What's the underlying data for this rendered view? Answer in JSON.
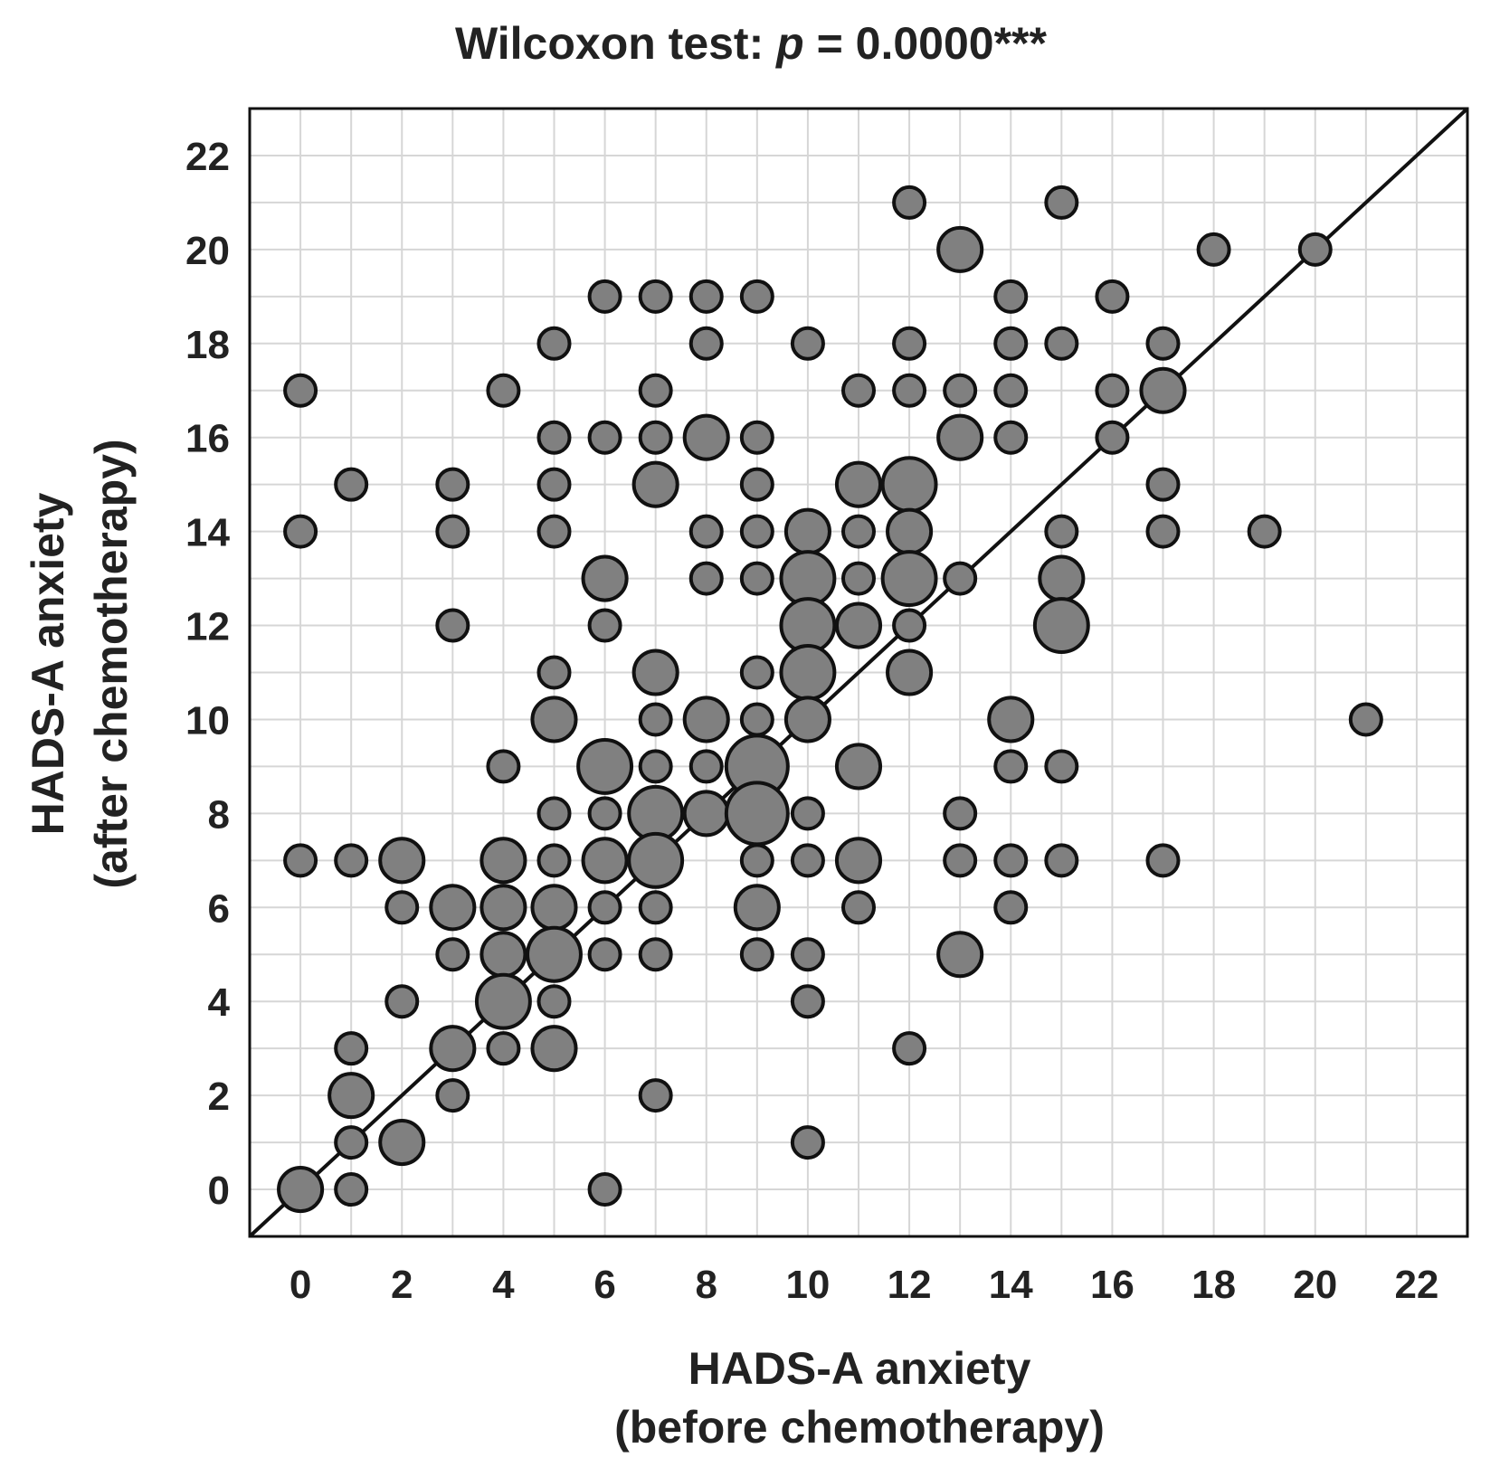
{
  "chart_data": {
    "type": "scatter",
    "title": {
      "prefix": "Wilcoxon test: ",
      "symbol": "p",
      "suffix": " = 0.0000***"
    },
    "xlabel": [
      "HADS-A anxiety",
      "(before chemotherapy)"
    ],
    "ylabel": [
      "HADS-A anxiety",
      "(after chemotherapy)"
    ],
    "xlim": [
      -1,
      23
    ],
    "ylim": [
      -1,
      23
    ],
    "x_ticks": [
      "0",
      "2",
      "4",
      "6",
      "8",
      "10",
      "12",
      "14",
      "16",
      "18",
      "20",
      "22"
    ],
    "y_ticks": [
      "0",
      "2",
      "4",
      "6",
      "8",
      "10",
      "12",
      "14",
      "16",
      "18",
      "20",
      "22"
    ],
    "grid": true,
    "reference_line": "y = x",
    "marker_color": "#808080",
    "marker_edge_color": "#111111",
    "points": [
      {
        "x": 0,
        "y": 17,
        "n": 1
      },
      {
        "x": 0,
        "y": 14,
        "n": 1
      },
      {
        "x": 0,
        "y": 7,
        "n": 1
      },
      {
        "x": 0,
        "y": 0,
        "n": 2
      },
      {
        "x": 1,
        "y": 15,
        "n": 1
      },
      {
        "x": 1,
        "y": 7,
        "n": 1
      },
      {
        "x": 1,
        "y": 3,
        "n": 1
      },
      {
        "x": 1,
        "y": 2,
        "n": 2
      },
      {
        "x": 1,
        "y": 1,
        "n": 1
      },
      {
        "x": 1,
        "y": 0,
        "n": 1
      },
      {
        "x": 2,
        "y": 7,
        "n": 2
      },
      {
        "x": 2,
        "y": 6,
        "n": 1
      },
      {
        "x": 2,
        "y": 4,
        "n": 1
      },
      {
        "x": 2,
        "y": 1,
        "n": 2
      },
      {
        "x": 3,
        "y": 15,
        "n": 1
      },
      {
        "x": 3,
        "y": 14,
        "n": 1
      },
      {
        "x": 3,
        "y": 12,
        "n": 1
      },
      {
        "x": 3,
        "y": 6,
        "n": 2
      },
      {
        "x": 3,
        "y": 5,
        "n": 1
      },
      {
        "x": 3,
        "y": 3,
        "n": 2
      },
      {
        "x": 3,
        "y": 2,
        "n": 1
      },
      {
        "x": 4,
        "y": 17,
        "n": 1
      },
      {
        "x": 4,
        "y": 9,
        "n": 1
      },
      {
        "x": 4,
        "y": 7,
        "n": 2
      },
      {
        "x": 4,
        "y": 6,
        "n": 2
      },
      {
        "x": 4,
        "y": 5,
        "n": 2
      },
      {
        "x": 4,
        "y": 4,
        "n": 3
      },
      {
        "x": 4,
        "y": 3,
        "n": 1
      },
      {
        "x": 5,
        "y": 18,
        "n": 1
      },
      {
        "x": 5,
        "y": 16,
        "n": 1
      },
      {
        "x": 5,
        "y": 15,
        "n": 1
      },
      {
        "x": 5,
        "y": 14,
        "n": 1
      },
      {
        "x": 5,
        "y": 11,
        "n": 1
      },
      {
        "x": 5,
        "y": 10,
        "n": 2
      },
      {
        "x": 5,
        "y": 8,
        "n": 1
      },
      {
        "x": 5,
        "y": 7,
        "n": 1
      },
      {
        "x": 5,
        "y": 6,
        "n": 2
      },
      {
        "x": 5,
        "y": 5,
        "n": 3
      },
      {
        "x": 5,
        "y": 4,
        "n": 1
      },
      {
        "x": 5,
        "y": 3,
        "n": 2
      },
      {
        "x": 6,
        "y": 19,
        "n": 1
      },
      {
        "x": 6,
        "y": 16,
        "n": 1
      },
      {
        "x": 6,
        "y": 13,
        "n": 2
      },
      {
        "x": 6,
        "y": 12,
        "n": 1
      },
      {
        "x": 6,
        "y": 9,
        "n": 3
      },
      {
        "x": 6,
        "y": 8,
        "n": 1
      },
      {
        "x": 6,
        "y": 7,
        "n": 2
      },
      {
        "x": 6,
        "y": 6,
        "n": 1
      },
      {
        "x": 6,
        "y": 5,
        "n": 1
      },
      {
        "x": 6,
        "y": 0,
        "n": 1
      },
      {
        "x": 7,
        "y": 19,
        "n": 1
      },
      {
        "x": 7,
        "y": 17,
        "n": 1
      },
      {
        "x": 7,
        "y": 16,
        "n": 1
      },
      {
        "x": 7,
        "y": 15,
        "n": 2
      },
      {
        "x": 7,
        "y": 11,
        "n": 2
      },
      {
        "x": 7,
        "y": 10,
        "n": 1
      },
      {
        "x": 7,
        "y": 9,
        "n": 1
      },
      {
        "x": 7,
        "y": 8,
        "n": 3
      },
      {
        "x": 7,
        "y": 7,
        "n": 3
      },
      {
        "x": 7,
        "y": 6,
        "n": 1
      },
      {
        "x": 7,
        "y": 5,
        "n": 1
      },
      {
        "x": 7,
        "y": 2,
        "n": 1
      },
      {
        "x": 8,
        "y": 19,
        "n": 1
      },
      {
        "x": 8,
        "y": 18,
        "n": 1
      },
      {
        "x": 8,
        "y": 16,
        "n": 2
      },
      {
        "x": 8,
        "y": 14,
        "n": 1
      },
      {
        "x": 8,
        "y": 13,
        "n": 1
      },
      {
        "x": 8,
        "y": 10,
        "n": 2
      },
      {
        "x": 8,
        "y": 9,
        "n": 1
      },
      {
        "x": 8,
        "y": 8,
        "n": 2
      },
      {
        "x": 9,
        "y": 19,
        "n": 1
      },
      {
        "x": 9,
        "y": 16,
        "n": 1
      },
      {
        "x": 9,
        "y": 15,
        "n": 1
      },
      {
        "x": 9,
        "y": 14,
        "n": 1
      },
      {
        "x": 9,
        "y": 13,
        "n": 1
      },
      {
        "x": 9,
        "y": 11,
        "n": 1
      },
      {
        "x": 9,
        "y": 10,
        "n": 1
      },
      {
        "x": 9,
        "y": 9,
        "n": 4
      },
      {
        "x": 9,
        "y": 8,
        "n": 4
      },
      {
        "x": 9,
        "y": 7,
        "n": 1
      },
      {
        "x": 9,
        "y": 6,
        "n": 2
      },
      {
        "x": 9,
        "y": 5,
        "n": 1
      },
      {
        "x": 10,
        "y": 18,
        "n": 1
      },
      {
        "x": 10,
        "y": 14,
        "n": 2
      },
      {
        "x": 10,
        "y": 13,
        "n": 3
      },
      {
        "x": 10,
        "y": 12,
        "n": 3
      },
      {
        "x": 10,
        "y": 11,
        "n": 3
      },
      {
        "x": 10,
        "y": 10,
        "n": 2
      },
      {
        "x": 10,
        "y": 8,
        "n": 1
      },
      {
        "x": 10,
        "y": 7,
        "n": 1
      },
      {
        "x": 10,
        "y": 5,
        "n": 1
      },
      {
        "x": 10,
        "y": 4,
        "n": 1
      },
      {
        "x": 10,
        "y": 1,
        "n": 1
      },
      {
        "x": 11,
        "y": 17,
        "n": 1
      },
      {
        "x": 11,
        "y": 15,
        "n": 2
      },
      {
        "x": 11,
        "y": 14,
        "n": 1
      },
      {
        "x": 11,
        "y": 13,
        "n": 1
      },
      {
        "x": 11,
        "y": 12,
        "n": 2
      },
      {
        "x": 11,
        "y": 9,
        "n": 2
      },
      {
        "x": 11,
        "y": 7,
        "n": 2
      },
      {
        "x": 11,
        "y": 6,
        "n": 1
      },
      {
        "x": 12,
        "y": 21,
        "n": 1
      },
      {
        "x": 12,
        "y": 18,
        "n": 1
      },
      {
        "x": 12,
        "y": 17,
        "n": 1
      },
      {
        "x": 12,
        "y": 15,
        "n": 3
      },
      {
        "x": 12,
        "y": 14,
        "n": 2
      },
      {
        "x": 12,
        "y": 13,
        "n": 3
      },
      {
        "x": 12,
        "y": 12,
        "n": 1
      },
      {
        "x": 12,
        "y": 11,
        "n": 2
      },
      {
        "x": 12,
        "y": 3,
        "n": 1
      },
      {
        "x": 13,
        "y": 20,
        "n": 2
      },
      {
        "x": 13,
        "y": 17,
        "n": 1
      },
      {
        "x": 13,
        "y": 16,
        "n": 2
      },
      {
        "x": 13,
        "y": 13,
        "n": 1
      },
      {
        "x": 13,
        "y": 8,
        "n": 1
      },
      {
        "x": 13,
        "y": 7,
        "n": 1
      },
      {
        "x": 13,
        "y": 5,
        "n": 2
      },
      {
        "x": 14,
        "y": 19,
        "n": 1
      },
      {
        "x": 14,
        "y": 18,
        "n": 1
      },
      {
        "x": 14,
        "y": 17,
        "n": 1
      },
      {
        "x": 14,
        "y": 16,
        "n": 1
      },
      {
        "x": 14,
        "y": 10,
        "n": 2
      },
      {
        "x": 14,
        "y": 9,
        "n": 1
      },
      {
        "x": 14,
        "y": 7,
        "n": 1
      },
      {
        "x": 14,
        "y": 6,
        "n": 1
      },
      {
        "x": 15,
        "y": 21,
        "n": 1
      },
      {
        "x": 15,
        "y": 18,
        "n": 1
      },
      {
        "x": 15,
        "y": 14,
        "n": 1
      },
      {
        "x": 15,
        "y": 13,
        "n": 2
      },
      {
        "x": 15,
        "y": 12,
        "n": 3
      },
      {
        "x": 15,
        "y": 9,
        "n": 1
      },
      {
        "x": 15,
        "y": 7,
        "n": 1
      },
      {
        "x": 16,
        "y": 19,
        "n": 1
      },
      {
        "x": 16,
        "y": 17,
        "n": 1
      },
      {
        "x": 16,
        "y": 16,
        "n": 1
      },
      {
        "x": 17,
        "y": 18,
        "n": 1
      },
      {
        "x": 17,
        "y": 17,
        "n": 2
      },
      {
        "x": 17,
        "y": 15,
        "n": 1
      },
      {
        "x": 17,
        "y": 14,
        "n": 1
      },
      {
        "x": 17,
        "y": 7,
        "n": 1
      },
      {
        "x": 18,
        "y": 20,
        "n": 1
      },
      {
        "x": 19,
        "y": 14,
        "n": 1
      },
      {
        "x": 20,
        "y": 20,
        "n": 1
      },
      {
        "x": 21,
        "y": 10,
        "n": 1
      }
    ]
  }
}
